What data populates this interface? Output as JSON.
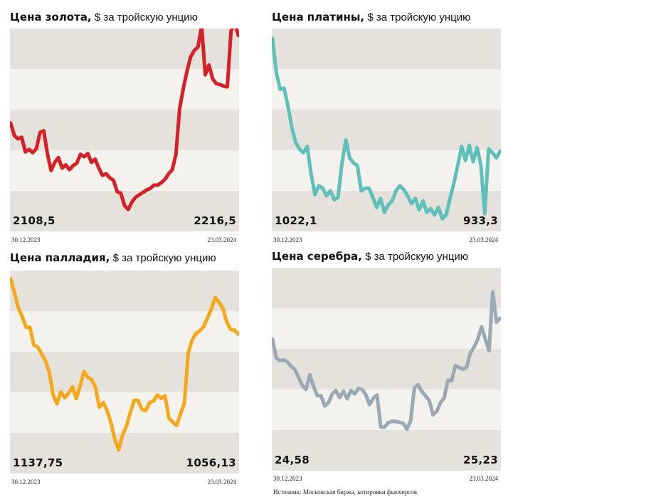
{
  "chart_data": [
    {
      "type": "line",
      "title": "Цена золота,",
      "subtitle": "$ за тройскую унцию",
      "color": "#d42027",
      "x_start": "30.12.2023",
      "x_end": "23.03.2024",
      "first_value": "2108,5",
      "last_value": "2216,5",
      "ylim": [
        1975,
        2225
      ],
      "values": [
        2108.5,
        2093,
        2089,
        2091,
        2073,
        2076,
        2072,
        2077,
        2097,
        2099,
        2071,
        2050,
        2060,
        2066,
        2053,
        2057,
        2051,
        2056,
        2059,
        2070,
        2067,
        2071,
        2060,
        2064,
        2053,
        2044,
        2046,
        2041,
        2038,
        2024,
        2022,
        2007,
        2002,
        2011,
        2017,
        2020,
        2023,
        2026,
        2028,
        2032,
        2032,
        2035,
        2039,
        2046,
        2051,
        2070,
        2126,
        2151,
        2172,
        2190,
        2198,
        2202,
        2228,
        2168,
        2180,
        2163,
        2157,
        2156,
        2154,
        2153,
        2222,
        2232,
        2216.5
      ]
    },
    {
      "type": "line",
      "title": "Цена платины,",
      "subtitle": "$ за тройскую унцию",
      "color": "#5fbfbb",
      "x_start": "30.12.2023",
      "x_end": "23.03.2024",
      "first_value": "1022,1",
      "last_value": "933,3",
      "ylim": [
        870,
        1030
      ],
      "values": [
        1022.1,
        995,
        982,
        983,
        969,
        952,
        940,
        935,
        932,
        937,
        915,
        899,
        906,
        904,
        898,
        902,
        895,
        897,
        924,
        942,
        928,
        924,
        922,
        902,
        904,
        904,
        897,
        889,
        896,
        885,
        891,
        894,
        902,
        906,
        903,
        898,
        892,
        896,
        887,
        894,
        885,
        888,
        883,
        889,
        880,
        883,
        896,
        908,
        922,
        937,
        926,
        938,
        925,
        936,
        922,
        884,
        935,
        932,
        928,
        933.3
      ]
    },
    {
      "type": "line",
      "title": "Цена палладия,",
      "subtitle": "$ за тройскую унцию",
      "color": "#f5a81c",
      "x_start": "30.12.2023",
      "x_end": "23.03.2024",
      "first_value": "1137,75",
      "last_value": "1056,13",
      "ylim": [
        850,
        1150
      ],
      "values": [
        1137.75,
        1117,
        1095,
        1082,
        1066,
        1066,
        1040,
        1037,
        1027,
        1017,
        1000,
        966,
        953,
        971,
        962,
        969,
        978,
        961,
        979,
        1001,
        992,
        989,
        977,
        948,
        955,
        943,
        925,
        900,
        885,
        907,
        920,
        940,
        958,
        958,
        945,
        943,
        955,
        957,
        966,
        961,
        965,
        932,
        926,
        921,
        938,
        954,
        1028,
        1047,
        1057,
        1061,
        1067,
        1080,
        1093,
        1110,
        1103,
        1094,
        1074,
        1063,
        1062,
        1056.13
      ]
    },
    {
      "type": "line",
      "title": "Цена серебра,",
      "subtitle": "$ за тройскую унцию",
      "color": "#9aa9b3",
      "x_start": "30.12.2023",
      "x_end": "23.03.2024",
      "first_value": "24,58",
      "last_value": "25,23",
      "ylim": [
        20.5,
        26.8
      ],
      "values": [
        24.58,
        24.0,
        23.92,
        23.94,
        23.87,
        23.74,
        23.64,
        23.39,
        23.14,
        23.02,
        23.48,
        23.11,
        22.83,
        22.83,
        22.51,
        22.61,
        22.88,
        22.99,
        22.77,
        22.97,
        22.73,
        22.99,
        22.88,
        23.05,
        23.02,
        22.86,
        22.55,
        22.75,
        22.85,
        21.86,
        21.85,
        21.99,
        22.03,
        22.03,
        22.0,
        21.97,
        21.79,
        22.04,
        23.06,
        23.17,
        22.96,
        22.82,
        22.67,
        22.23,
        22.34,
        22.61,
        22.76,
        23.31,
        23.29,
        23.76,
        23.7,
        23.65,
        23.71,
        24.15,
        24.34,
        24.58,
        24.97,
        24.59,
        24.23,
        26.05,
        25.11,
        25.23
      ]
    }
  ],
  "source": "Источник: Московская биржа, котировки фьючерсов"
}
